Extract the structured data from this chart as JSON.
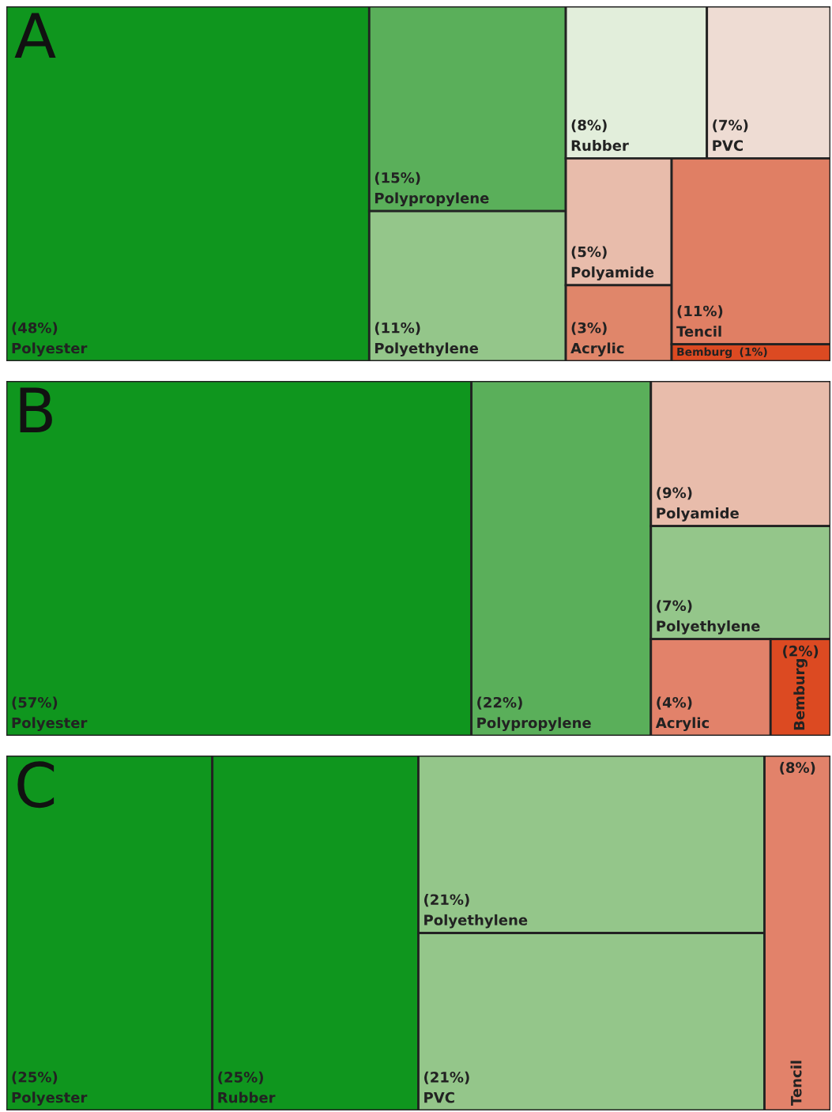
{
  "chart_data": [
    {
      "type": "other",
      "title": "A",
      "categories": [
        "Polyester",
        "Polypropylene",
        "Polyethylene",
        "Rubber",
        "PVC",
        "Polyamide",
        "Acrylic",
        "Tencil",
        "Bemburg"
      ],
      "values": [
        48,
        15,
        11,
        8,
        7,
        5,
        3,
        11,
        1
      ],
      "value_labels": [
        "(48%)",
        "(15%)",
        "(11%)",
        "(8%)",
        "(7%)",
        "(5%)",
        "(3%)",
        "(11%)",
        "(1%)"
      ],
      "colors": [
        "#0f961e",
        "#5aaf5a",
        "#94c68a",
        "#e2eedb",
        "#eedcd3",
        "#e8bcab",
        "#e0866a",
        "#e07f64",
        "#dc4a22"
      ]
    },
    {
      "type": "other",
      "title": "B",
      "categories": [
        "Polyester",
        "Polypropylene",
        "Polyamide",
        "Polyethylene",
        "Acrylic",
        "Bemburg"
      ],
      "values": [
        57,
        22,
        9,
        7,
        4,
        2
      ],
      "value_labels": [
        "(57%)",
        "(22%)",
        "(9%)",
        "(7%)",
        "(4%)",
        "(2%)"
      ],
      "colors": [
        "#0f961e",
        "#5aaf5a",
        "#e8bcab",
        "#94c68a",
        "#e2826a",
        "#dc4a22"
      ]
    },
    {
      "type": "other",
      "title": "C",
      "categories": [
        "Polyester",
        "Rubber",
        "Polyethylene",
        "PVC",
        "Tencil"
      ],
      "values": [
        25,
        25,
        21,
        21,
        8
      ],
      "value_labels": [
        "(25%)",
        "(25%)",
        "(21%)",
        "(21%)",
        "(8%)"
      ],
      "colors": [
        "#0f961e",
        "#0f961e",
        "#94c68a",
        "#94c68a",
        "#e2826a"
      ]
    }
  ]
}
